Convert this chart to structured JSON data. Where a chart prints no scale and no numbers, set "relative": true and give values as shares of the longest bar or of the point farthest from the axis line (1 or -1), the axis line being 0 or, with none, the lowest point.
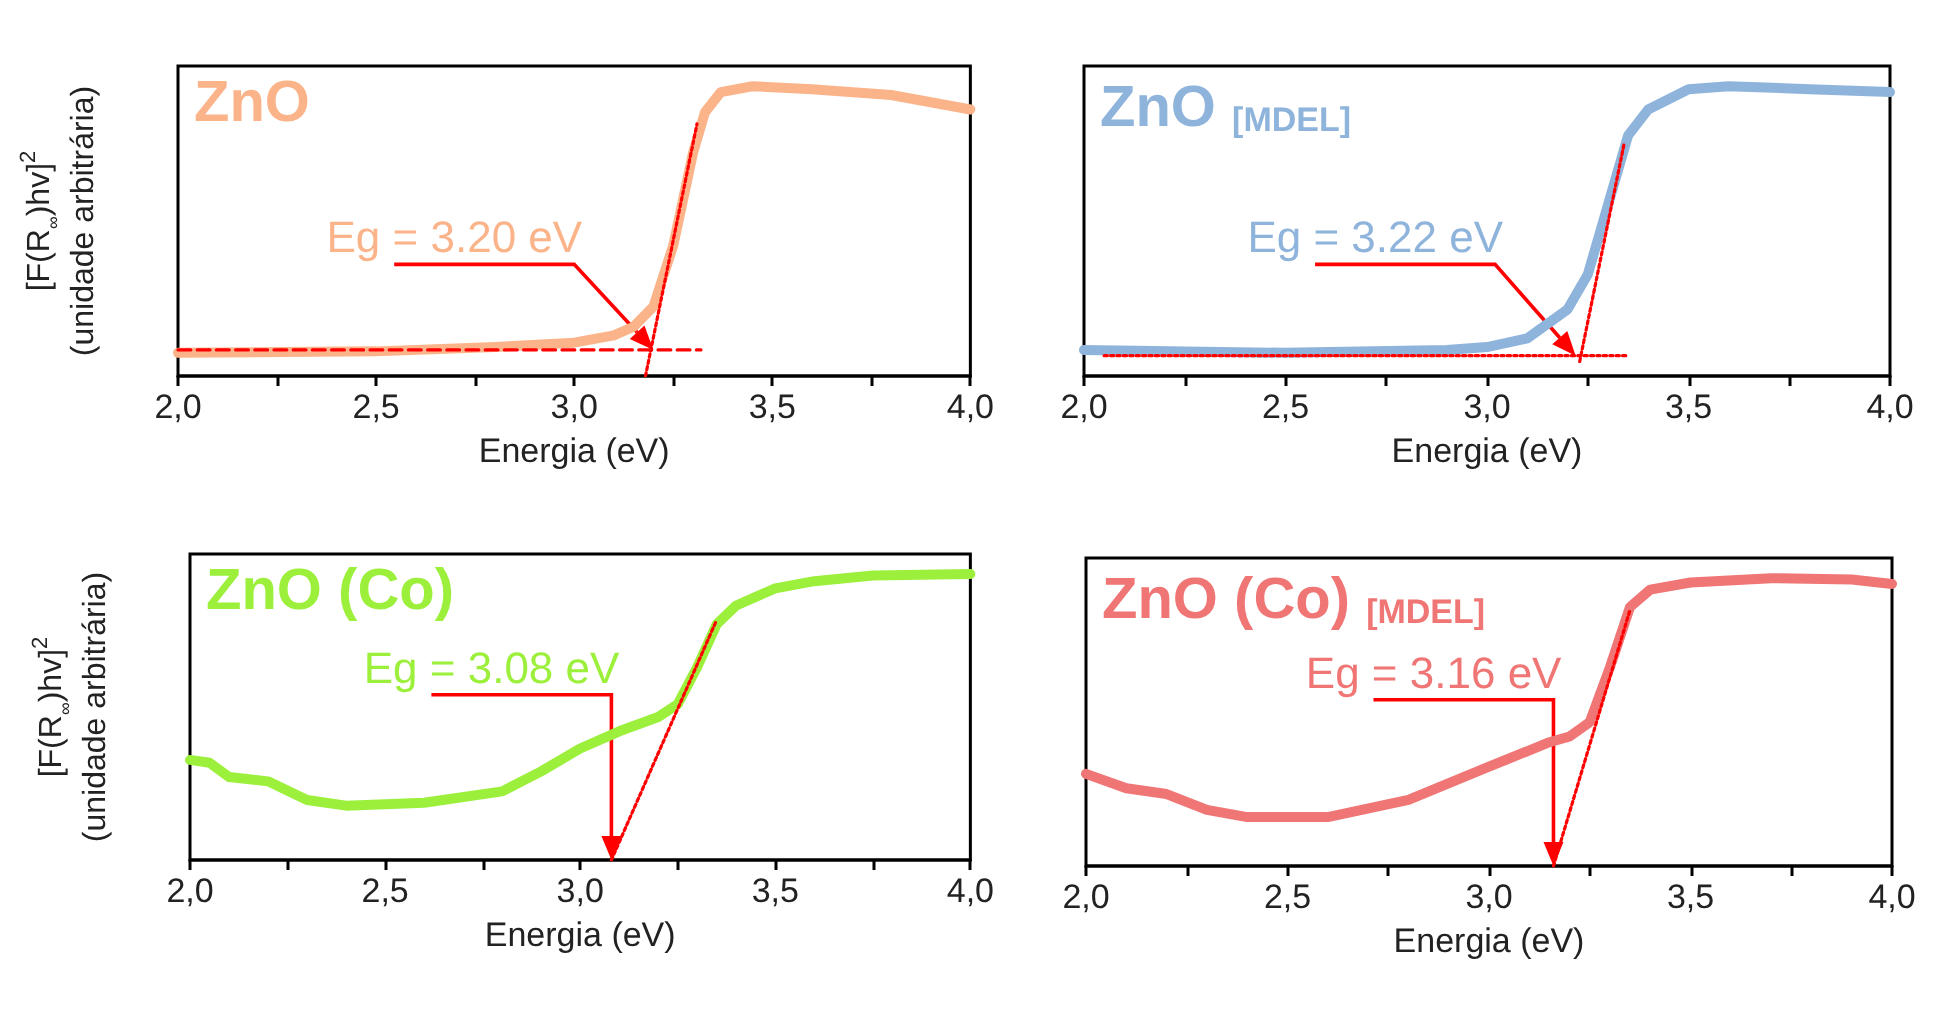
{
  "chart_data": [
    {
      "type": "line",
      "title": "ZnO",
      "xlabel": "Energia (eV)",
      "ylabel": "[F(R$_{∞}$)hv]$^{2}$\n(unidade arbitrária)",
      "relative": true,
      "xlim": [
        2,
        4
      ],
      "xticks": [
        {
          "value": 2,
          "label": "2,0"
        },
        {
          "value": 2.25,
          "label": null
        },
        {
          "value": 2.5,
          "label": "2,5"
        },
        {
          "value": 2.75,
          "label": null
        },
        {
          "value": 3,
          "label": "3,0"
        },
        {
          "value": 3.25,
          "label": null
        },
        {
          "value": 3.5,
          "label": "3,5"
        },
        {
          "value": 3.75,
          "label": null
        },
        {
          "value": 4,
          "label": "4,0"
        }
      ],
      "tick_labels": "x",
      "grid": false,
      "marker": "none",
      "annotations": [
        {
          "text": "Eg = 3.20 eV",
          "x": 3.2,
          "y": 0.09
        }
      ],
      "series": [
        {
          "color": "#fbb48a",
          "x": [
            2.0,
            2.5,
            2.8,
            3.0,
            3.1,
            3.15,
            3.2,
            3.25,
            3.3,
            3.33,
            3.37,
            3.45,
            3.6,
            3.8,
            4.0
          ],
          "values": [
            0.08,
            0.085,
            0.1,
            0.115,
            0.14,
            0.17,
            0.24,
            0.45,
            0.77,
            0.91,
            0.98,
            1.0,
            0.99,
            0.97,
            0.92
          ]
        },
        {
          "color": "#ff0000",
          "line_style": "dashed",
          "x": [
            2.0,
            3.32
          ],
          "values": [
            0.09,
            0.09
          ]
        },
        {
          "color": "#ff0000",
          "line_style": "dotted",
          "x": [
            3.18,
            3.31
          ],
          "values": [
            0,
            0.87
          ]
        }
      ]
    },
    {
      "type": "line",
      "title": "ZnO",
      "subtitle": "[MDEL]",
      "xlabel": "Energia (eV)",
      "relative": true,
      "xlim": [
        2,
        4
      ],
      "xticks": [
        {
          "value": 2,
          "label": "2,0"
        },
        {
          "value": 2.25,
          "label": null
        },
        {
          "value": 2.5,
          "label": "2,5"
        },
        {
          "value": 2.75,
          "label": null
        },
        {
          "value": 3,
          "label": "3,0"
        },
        {
          "value": 3.25,
          "label": null
        },
        {
          "value": 3.5,
          "label": "3,5"
        },
        {
          "value": 3.75,
          "label": null
        },
        {
          "value": 4,
          "label": "4,0"
        }
      ],
      "tick_labels": "x",
      "grid": false,
      "marker": "none",
      "annotations": [
        {
          "text": "Eg = 3.22 eV",
          "x": 3.22,
          "y": 0.07
        }
      ],
      "series": [
        {
          "color": "#8fb4dc",
          "x": [
            2.0,
            2.5,
            2.9,
            3.0,
            3.1,
            3.2,
            3.25,
            3.3,
            3.35,
            3.4,
            3.5,
            3.6,
            3.8,
            4.0
          ],
          "values": [
            0.09,
            0.08,
            0.09,
            0.1,
            0.13,
            0.23,
            0.35,
            0.59,
            0.83,
            0.92,
            0.99,
            1.0,
            0.99,
            0.98
          ]
        },
        {
          "color": "#ff0000",
          "line_style": "dotted",
          "x": [
            2.05,
            3.35
          ],
          "values": [
            0.07,
            0.07
          ]
        },
        {
          "color": "#ff0000",
          "line_style": "dotted",
          "x": [
            3.23,
            3.34
          ],
          "values": [
            0.05,
            0.8
          ]
        }
      ]
    },
    {
      "type": "line",
      "title": "ZnO (Co)",
      "xlabel": "Energia (eV)",
      "ylabel": "[F(R$_{∞}$)hv]$^{2}$\n(unidade arbitrária)",
      "relative": true,
      "xlim": [
        2,
        4
      ],
      "xticks": [
        {
          "value": 2,
          "label": "2,0"
        },
        {
          "value": 2.25,
          "label": null
        },
        {
          "value": 2.5,
          "label": "2,5"
        },
        {
          "value": 2.75,
          "label": null
        },
        {
          "value": 3,
          "label": "3,0"
        },
        {
          "value": 3.25,
          "label": null
        },
        {
          "value": 3.5,
          "label": "3,5"
        },
        {
          "value": 3.75,
          "label": null
        },
        {
          "value": 4,
          "label": "4,0"
        }
      ],
      "tick_labels": "x",
      "grid": false,
      "marker": "none",
      "annotations": [
        "Eg = 3.08 eV"
      ],
      "series": [
        {
          "color": "#9cf03c",
          "x": [
            2.0,
            2.05,
            2.1,
            2.2,
            2.3,
            2.4,
            2.6,
            2.8,
            2.9,
            3.0,
            3.1,
            3.2,
            3.25,
            3.3,
            3.35,
            3.4,
            3.5,
            3.6,
            3.75,
            4.0
          ],
          "values": [
            0.35,
            0.34,
            0.29,
            0.275,
            0.21,
            0.19,
            0.2,
            0.24,
            0.31,
            0.39,
            0.45,
            0.5,
            0.545,
            0.675,
            0.825,
            0.89,
            0.95,
            0.975,
            0.995,
            1.0
          ]
        },
        {
          "color": "#ff0000",
          "line_style": "dotted",
          "x": [
            3.08,
            3.35
          ],
          "values": [
            0,
            0.84
          ]
        }
      ]
    },
    {
      "type": "line",
      "title": "ZnO (Co)",
      "subtitle": "[MDEL]",
      "xlabel": "Energia (eV)",
      "relative": true,
      "xlim": [
        2,
        4
      ],
      "xticks": [
        {
          "value": 2,
          "label": "2,0"
        },
        {
          "value": 2.25,
          "label": null
        },
        {
          "value": 2.5,
          "label": "2,5"
        },
        {
          "value": 2.75,
          "label": null
        },
        {
          "value": 3,
          "label": "3,0"
        },
        {
          "value": 3.25,
          "label": null
        },
        {
          "value": 3.5,
          "label": "3,5"
        },
        {
          "value": 3.75,
          "label": null
        },
        {
          "value": 4,
          "label": "4,0"
        }
      ],
      "tick_labels": "x",
      "grid": false,
      "marker": "none",
      "annotations": [
        "Eg = 3.16 eV"
      ],
      "series": [
        {
          "color": "#f07575",
          "x": [
            2.0,
            2.1,
            2.2,
            2.3,
            2.4,
            2.6,
            2.8,
            3.0,
            3.15,
            3.2,
            3.25,
            3.3,
            3.35,
            3.4,
            3.5,
            3.7,
            3.9,
            4.0
          ],
          "values": [
            0.32,
            0.27,
            0.25,
            0.195,
            0.17,
            0.17,
            0.23,
            0.345,
            0.43,
            0.45,
            0.5,
            0.69,
            0.9,
            0.96,
            0.985,
            1.0,
            0.995,
            0.98
          ]
        },
        {
          "color": "#ff0000",
          "line_style": "dotted",
          "x": [
            3.16,
            3.35
          ],
          "values": [
            0,
            0.89
          ]
        }
      ]
    }
  ]
}
